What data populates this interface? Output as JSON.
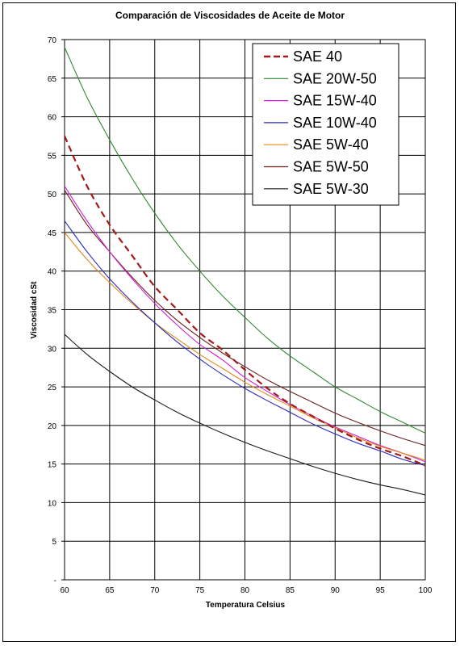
{
  "chart_data": {
    "type": "line",
    "title": "Comparación de Viscosidades de Aceite de Motor",
    "xlabel": "Temperatura Celsius",
    "ylabel": "Viscosidad cSt",
    "xlim": [
      60,
      100
    ],
    "ylim": [
      0,
      70
    ],
    "x_ticks": [
      "60",
      "65",
      "70",
      "75",
      "80",
      "85",
      "90",
      "95",
      "100"
    ],
    "y_ticks": [
      "-",
      "5",
      "10",
      "15",
      "20",
      "25",
      "30",
      "35",
      "40",
      "45",
      "50",
      "55",
      "60",
      "65",
      "70"
    ],
    "grid": true,
    "legend_position": "top-right",
    "x": [
      60,
      62.5,
      65,
      67.5,
      70,
      72.5,
      75,
      77.5,
      80,
      82.5,
      85,
      87.5,
      90,
      92.5,
      95,
      97.5,
      100
    ],
    "series": [
      {
        "name": "SAE 40",
        "color": "#a31a1a",
        "dash": true,
        "values": [
          57.5,
          51,
          46,
          42,
          38,
          35,
          32,
          29.8,
          27.2,
          24.8,
          22.8,
          21.2,
          19.6,
          18.2,
          17,
          16,
          14.8
        ]
      },
      {
        "name": "SAE 20W-50",
        "color": "#2f8a2f",
        "dash": false,
        "values": [
          69,
          62.5,
          57,
          52,
          47.5,
          43.5,
          40,
          36.8,
          34,
          31.3,
          29,
          27,
          25,
          23.4,
          21.8,
          20.4,
          19
        ]
      },
      {
        "name": "SAE 15W-40",
        "color": "#d21ed2",
        "dash": false,
        "values": [
          51,
          46.5,
          42.5,
          39,
          35.8,
          33,
          30.5,
          28.5,
          26.2,
          24.4,
          22.7,
          21.2,
          19.8,
          18.6,
          17.4,
          16.4,
          15.3
        ]
      },
      {
        "name": "SAE 10W-40",
        "color": "#2b2bb8",
        "dash": false,
        "values": [
          46.5,
          42.5,
          39,
          36,
          33.3,
          30.8,
          28.6,
          26.6,
          24.8,
          23.2,
          21.7,
          20.2,
          18.9,
          17.7,
          16.7,
          15.6,
          14.8
        ]
      },
      {
        "name": "SAE 5W-40",
        "color": "#e08a1a",
        "dash": false,
        "values": [
          45,
          41.5,
          38.5,
          35.8,
          33.3,
          31.2,
          29.2,
          27.4,
          25.6,
          24,
          22.5,
          21,
          19.7,
          18.4,
          17.3,
          16.4,
          15.5
        ]
      },
      {
        "name": "SAE 5W-50",
        "color": "#6b1f1f",
        "dash": false,
        "values": [
          50.5,
          46,
          42.5,
          39.2,
          36.2,
          33.6,
          31.4,
          29.4,
          27.6,
          25.9,
          24.4,
          23,
          21.6,
          20.4,
          19.3,
          18.3,
          17.4
        ]
      },
      {
        "name": "SAE 5W-30",
        "color": "#1a1a1a",
        "dash": false,
        "values": [
          31.8,
          29.2,
          27,
          25,
          23.3,
          21.7,
          20.3,
          19,
          17.8,
          16.7,
          15.7,
          14.7,
          13.8,
          13,
          12.3,
          11.7,
          11
        ]
      }
    ]
  }
}
